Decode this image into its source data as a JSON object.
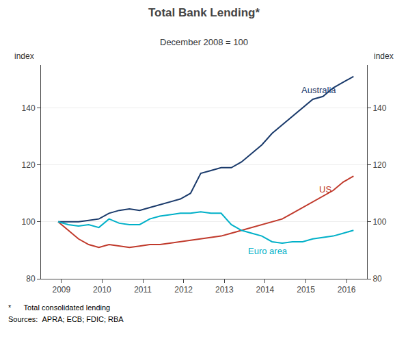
{
  "chart_data": {
    "type": "line",
    "title": "Total Bank Lending*",
    "subtitle": "December 2008 = 100",
    "ylabel": "index",
    "y2label": "index",
    "notes": [
      "*      Total consolidated lending",
      "Sources:  APRA; ECB; FDIC; RBA"
    ],
    "x": [
      2008.92,
      2009.17,
      2009.42,
      2009.67,
      2009.92,
      2010.17,
      2010.42,
      2010.67,
      2010.92,
      2011.17,
      2011.42,
      2011.67,
      2011.92,
      2012.17,
      2012.42,
      2012.67,
      2012.92,
      2013.17,
      2013.42,
      2013.67,
      2013.92,
      2014.17,
      2014.42,
      2014.67,
      2014.92,
      2015.17,
      2015.42,
      2015.67,
      2015.92,
      2016.17
    ],
    "series": [
      {
        "name": "Australia",
        "color": "#1a3a6b",
        "label_x": 2014.85,
        "label_y": 144,
        "values": [
          100,
          100,
          100,
          100.5,
          101,
          103,
          104,
          104.5,
          104,
          105,
          106,
          107,
          108,
          110,
          117,
          118,
          119,
          119,
          121,
          124,
          127,
          131,
          134,
          137,
          140,
          143,
          144,
          147,
          149,
          151
        ]
      },
      {
        "name": "US",
        "color": "#c0392b",
        "label_x": 2015.3,
        "label_y": 109,
        "values": [
          100,
          97,
          94,
          92,
          91,
          92,
          91.5,
          91,
          91.5,
          92,
          92,
          92.5,
          93,
          93.5,
          94,
          94.5,
          95,
          96,
          97,
          98,
          99,
          100,
          101,
          103,
          105,
          107,
          109,
          111,
          114,
          116
        ]
      },
      {
        "name": "Euro area",
        "color": "#00b0c8",
        "label_x": 2013.55,
        "label_y": 87.5,
        "values": [
          100,
          99,
          98.5,
          99,
          98,
          101,
          99.5,
          99,
          99,
          101,
          102,
          102.5,
          103,
          103,
          103.5,
          103,
          103,
          99,
          97,
          96,
          95,
          93,
          92.5,
          93,
          93,
          94,
          94.5,
          95,
          96,
          97
        ]
      }
    ],
    "xlim": [
      2008.5,
      2016.5
    ],
    "xticks": [
      2009,
      2010,
      2011,
      2012,
      2013,
      2014,
      2015,
      2016
    ],
    "ylim": [
      80,
      155
    ],
    "yticks": [
      80,
      100,
      120,
      140
    ],
    "y2lim": [
      80,
      155
    ],
    "y2ticks": [
      80,
      100,
      120,
      140
    ],
    "grid": true
  }
}
